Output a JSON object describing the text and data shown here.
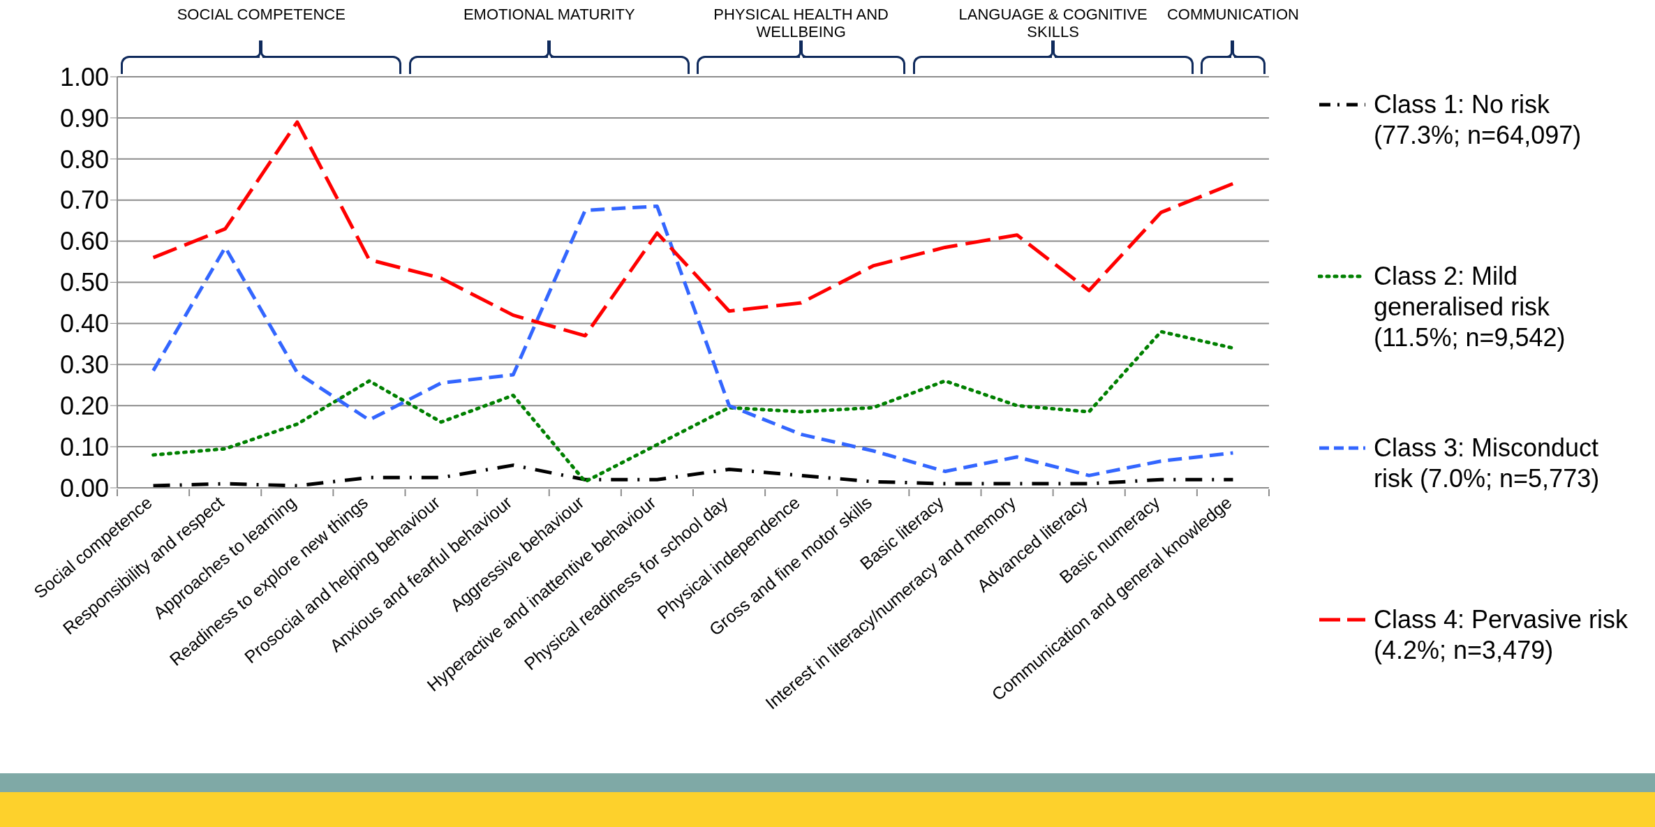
{
  "chart_data": {
    "type": "line",
    "categories": [
      "Social competence",
      "Responsibility and respect",
      "Approaches to learning",
      "Readiness to explore new things",
      "Prosocial and helping behaviour",
      "Anxious and fearful behaviour",
      "Aggressive behaviour",
      "Hyperactive and inattentive behaviour",
      "Physical readiness for school day",
      "Physical independence",
      "Gross and fine motor skills",
      "Basic literacy",
      "Interest in literacy/numeracy and memory",
      "Advanced literacy",
      "Basic numeracy",
      "Communication and general knowledge"
    ],
    "series": [
      {
        "name": "Class 1: No risk (77.3%; n=64,097)",
        "color": "#000000",
        "line_style": "dashdot",
        "values": [
          0.005,
          0.01,
          0.005,
          0.025,
          0.025,
          0.055,
          0.02,
          0.02,
          0.045,
          0.03,
          0.015,
          0.01,
          0.01,
          0.01,
          0.02,
          0.02
        ]
      },
      {
        "name": "Class 2: Mild generalised risk (11.5%; n=9,542)",
        "color": "#008000",
        "line_style": "dotted",
        "values": [
          0.08,
          0.095,
          0.155,
          0.26,
          0.16,
          0.225,
          0.015,
          0.105,
          0.195,
          0.185,
          0.195,
          0.26,
          0.2,
          0.185,
          0.38,
          0.34
        ]
      },
      {
        "name": "Class 3: Misconduct risk (7.0%; n=5,773)",
        "color": "#3366ff",
        "line_style": "dashed",
        "values": [
          0.285,
          0.585,
          0.28,
          0.165,
          0.255,
          0.275,
          0.675,
          0.685,
          0.2,
          0.13,
          0.09,
          0.04,
          0.075,
          0.03,
          0.065,
          0.085
        ]
      },
      {
        "name": "Class 4: Pervasive risk (4.2%; n=3,479)",
        "color": "#ff0000",
        "line_style": "longdash",
        "values": [
          0.56,
          0.63,
          0.89,
          0.555,
          0.51,
          0.42,
          0.37,
          0.62,
          0.43,
          0.45,
          0.54,
          0.585,
          0.615,
          0.48,
          0.67,
          0.74
        ]
      }
    ],
    "ylim": [
      0,
      1
    ],
    "yticks": [
      {
        "value": 0,
        "label": "0.00"
      },
      {
        "value": 0.1,
        "label": "0.10"
      },
      {
        "value": 0.2,
        "label": "0.20"
      },
      {
        "value": 0.3,
        "label": "0.30"
      },
      {
        "value": 0.4,
        "label": "0.40"
      },
      {
        "value": 0.5,
        "label": "0.50"
      },
      {
        "value": 0.6,
        "label": "0.60"
      },
      {
        "value": 0.7,
        "label": "0.70"
      },
      {
        "value": 0.8,
        "label": "0.80"
      },
      {
        "value": 0.9,
        "label": "0.90"
      },
      {
        "value": 1,
        "label": "1.00"
      }
    ],
    "grid": "y",
    "legend": "right",
    "annotations": [
      "SOCIAL COMPETENCE",
      "EMOTIONAL MATURITY",
      "PHYSICAL HEALTH AND WELLBEING",
      "LANGUAGE & COGNITIVE SKILLS",
      "COMMUNICATION"
    ]
  }
}
